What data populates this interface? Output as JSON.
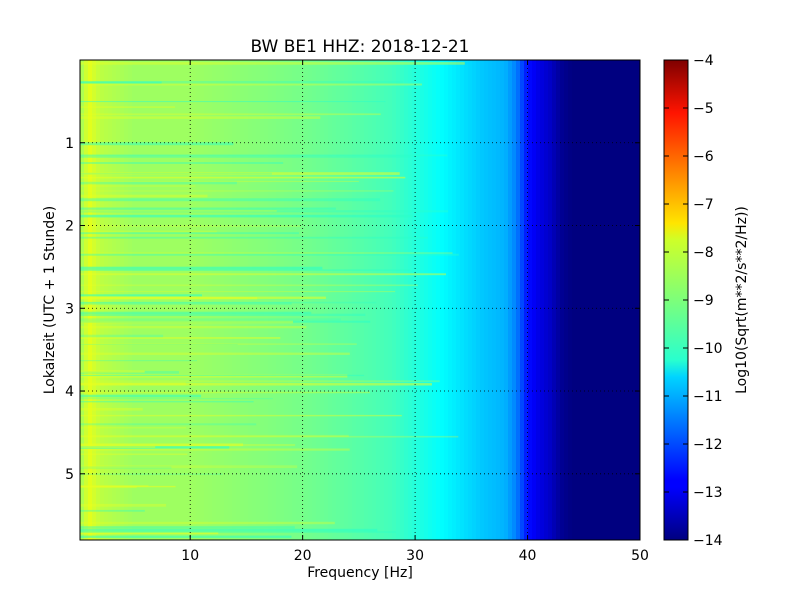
{
  "chart_data": {
    "type": "heatmap",
    "title": "BW BE1 HHZ: 2018-12-21",
    "xlabel": "Frequency [Hz]",
    "ylabel": "Lokalzeit (UTC + 1 Stunde)",
    "xlim": [
      0.2,
      50
    ],
    "ylim": [
      0,
      5.8
    ],
    "y_inverted": true,
    "x_ticks": [
      10,
      20,
      30,
      40,
      50
    ],
    "y_ticks": [
      1,
      2,
      3,
      4,
      5
    ],
    "grid": true,
    "colormap": "jet",
    "colorbar": {
      "label": "Log10(Sqrt(m**2/s**2/Hz))",
      "range": [
        -14,
        -4
      ],
      "ticks": [
        -4,
        -5,
        -6,
        -7,
        -8,
        -9,
        -10,
        -11,
        -12,
        -13,
        -14
      ]
    },
    "frequency_profile": {
      "frequency_hz": [
        0.2,
        1,
        2,
        5,
        10,
        15,
        20,
        25,
        28,
        30,
        32,
        34,
        36,
        38,
        39,
        40,
        41,
        42,
        43,
        44,
        50
      ],
      "log10_psd": [
        -8.7,
        -8.0,
        -8.4,
        -8.7,
        -8.7,
        -8.9,
        -9.1,
        -9.4,
        -9.6,
        -9.9,
        -10.2,
        -10.5,
        -10.8,
        -11.0,
        -11.5,
        -12.6,
        -13.0,
        -13.3,
        -13.8,
        -14.0,
        -14.0
      ]
    }
  }
}
